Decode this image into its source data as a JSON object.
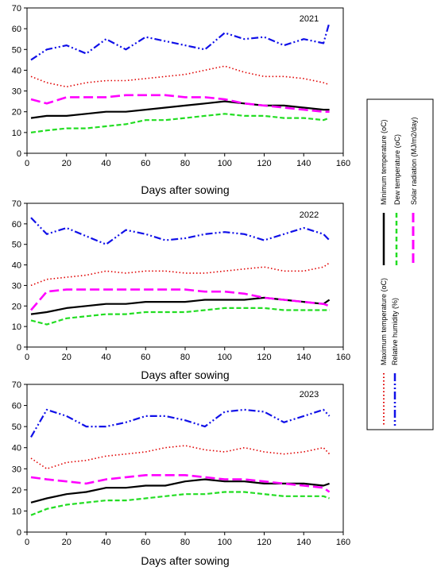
{
  "chart_data": [
    {
      "type": "line",
      "title": "2021",
      "xlabel": "Days after sowing",
      "ylabel": "",
      "xlim": [
        0,
        160
      ],
      "ylim": [
        0,
        70
      ],
      "xticks": [
        0,
        20,
        40,
        60,
        80,
        100,
        120,
        140,
        160
      ],
      "yticks": [
        0,
        10,
        20,
        30,
        40,
        50,
        60,
        70
      ],
      "x": [
        2,
        10,
        20,
        30,
        40,
        50,
        60,
        70,
        80,
        90,
        100,
        110,
        120,
        130,
        140,
        150,
        153
      ],
      "series": [
        {
          "name": "Maximum temperature (oC)",
          "values": [
            37,
            34,
            32,
            34,
            35,
            35,
            36,
            37,
            38,
            40,
            42,
            39,
            37,
            37,
            36,
            34,
            33
          ]
        },
        {
          "name": "Relative humidity (%)",
          "values": [
            45,
            50,
            52,
            48,
            55,
            50,
            56,
            54,
            52,
            50,
            58,
            55,
            56,
            52,
            55,
            53,
            63
          ]
        },
        {
          "name": "Minimum temperature (oC)",
          "values": [
            17,
            18,
            18,
            19,
            20,
            20,
            21,
            22,
            23,
            24,
            25,
            24,
            23,
            23,
            22,
            21,
            21
          ]
        },
        {
          "name": "Dew temperature (oC)",
          "values": [
            10,
            11,
            12,
            12,
            13,
            14,
            16,
            16,
            17,
            18,
            19,
            18,
            18,
            17,
            17,
            16,
            17
          ]
        },
        {
          "name": "Solar radiation (MJ/m2/day)",
          "values": [
            26,
            24,
            27,
            27,
            27,
            28,
            28,
            28,
            27,
            27,
            26,
            24,
            23,
            22,
            21,
            20,
            20
          ]
        }
      ]
    },
    {
      "type": "line",
      "title": "2022",
      "xlabel": "Days after sowing",
      "ylabel": "",
      "xlim": [
        0,
        160
      ],
      "ylim": [
        0,
        70
      ],
      "xticks": [
        0,
        20,
        40,
        60,
        80,
        100,
        120,
        140,
        160
      ],
      "yticks": [
        0,
        10,
        20,
        30,
        40,
        50,
        60,
        70
      ],
      "x": [
        2,
        10,
        20,
        30,
        40,
        50,
        60,
        70,
        80,
        90,
        100,
        110,
        120,
        130,
        140,
        150,
        153
      ],
      "series": [
        {
          "name": "Maximum temperature (oC)",
          "values": [
            30,
            33,
            34,
            35,
            37,
            36,
            37,
            37,
            36,
            36,
            37,
            38,
            39,
            37,
            37,
            39,
            41
          ]
        },
        {
          "name": "Relative humidity (%)",
          "values": [
            63,
            55,
            58,
            54,
            50,
            57,
            55,
            52,
            53,
            55,
            56,
            55,
            52,
            55,
            58,
            55,
            52
          ]
        },
        {
          "name": "Minimum temperature (oC)",
          "values": [
            16,
            17,
            19,
            20,
            21,
            21,
            22,
            22,
            22,
            23,
            23,
            23,
            24,
            23,
            22,
            21,
            23
          ]
        },
        {
          "name": "Dew temperature (oC)",
          "values": [
            13,
            11,
            14,
            15,
            16,
            16,
            17,
            17,
            17,
            18,
            19,
            19,
            19,
            18,
            18,
            18,
            18
          ]
        },
        {
          "name": "Solar radiation (MJ/m2/day)",
          "values": [
            18,
            27,
            28,
            28,
            28,
            28,
            28,
            28,
            28,
            27,
            27,
            26,
            24,
            23,
            22,
            21,
            20
          ]
        }
      ]
    },
    {
      "type": "line",
      "title": "2023",
      "xlabel": "Days after sowing",
      "ylabel": "",
      "xlim": [
        0,
        160
      ],
      "ylim": [
        0,
        70
      ],
      "xticks": [
        0,
        20,
        40,
        60,
        80,
        100,
        120,
        140,
        160
      ],
      "yticks": [
        0,
        10,
        20,
        30,
        40,
        50,
        60,
        70
      ],
      "x": [
        2,
        10,
        20,
        30,
        40,
        50,
        60,
        70,
        80,
        90,
        100,
        110,
        120,
        130,
        140,
        150,
        153
      ],
      "series": [
        {
          "name": "Maximum temperature (oC)",
          "values": [
            35,
            30,
            33,
            34,
            36,
            37,
            38,
            40,
            41,
            39,
            38,
            40,
            38,
            37,
            38,
            40,
            37
          ]
        },
        {
          "name": "Relative humidity (%)",
          "values": [
            45,
            58,
            55,
            50,
            50,
            52,
            55,
            55,
            53,
            50,
            57,
            58,
            57,
            52,
            55,
            58,
            55
          ]
        },
        {
          "name": "Minimum temperature (oC)",
          "values": [
            14,
            16,
            18,
            19,
            21,
            21,
            22,
            22,
            24,
            25,
            24,
            24,
            23,
            23,
            23,
            22,
            23
          ]
        },
        {
          "name": "Dew temperature (oC)",
          "values": [
            8,
            11,
            13,
            14,
            15,
            15,
            16,
            17,
            18,
            18,
            19,
            19,
            18,
            17,
            17,
            17,
            16
          ]
        },
        {
          "name": "Solar radiation (MJ/m2/day)",
          "values": [
            26,
            25,
            24,
            23,
            25,
            26,
            27,
            27,
            27,
            26,
            25,
            25,
            24,
            23,
            22,
            21,
            19
          ]
        }
      ]
    }
  ],
  "legend": {
    "entries": [
      {
        "label": "Maximum temperature (oC)",
        "color": "#e00000",
        "style": "dotted"
      },
      {
        "label": "Relative humidity (%)",
        "color": "#1010e8",
        "style": "dash-dot-dot"
      },
      {
        "label": "Minimum temperature (oC)",
        "color": "#000000",
        "style": "solid"
      },
      {
        "label": "Dew temperature (oC)",
        "color": "#22dd22",
        "style": "dashed"
      },
      {
        "label": "Solar radiation (MJ/m2/day)",
        "color": "#ff00ff",
        "style": "long-dash"
      }
    ]
  },
  "colors": {
    "max_temp": "#e00000",
    "humidity": "#1010e8",
    "min_temp": "#000000",
    "dew_temp": "#22dd22",
    "solar": "#ff00ff"
  }
}
